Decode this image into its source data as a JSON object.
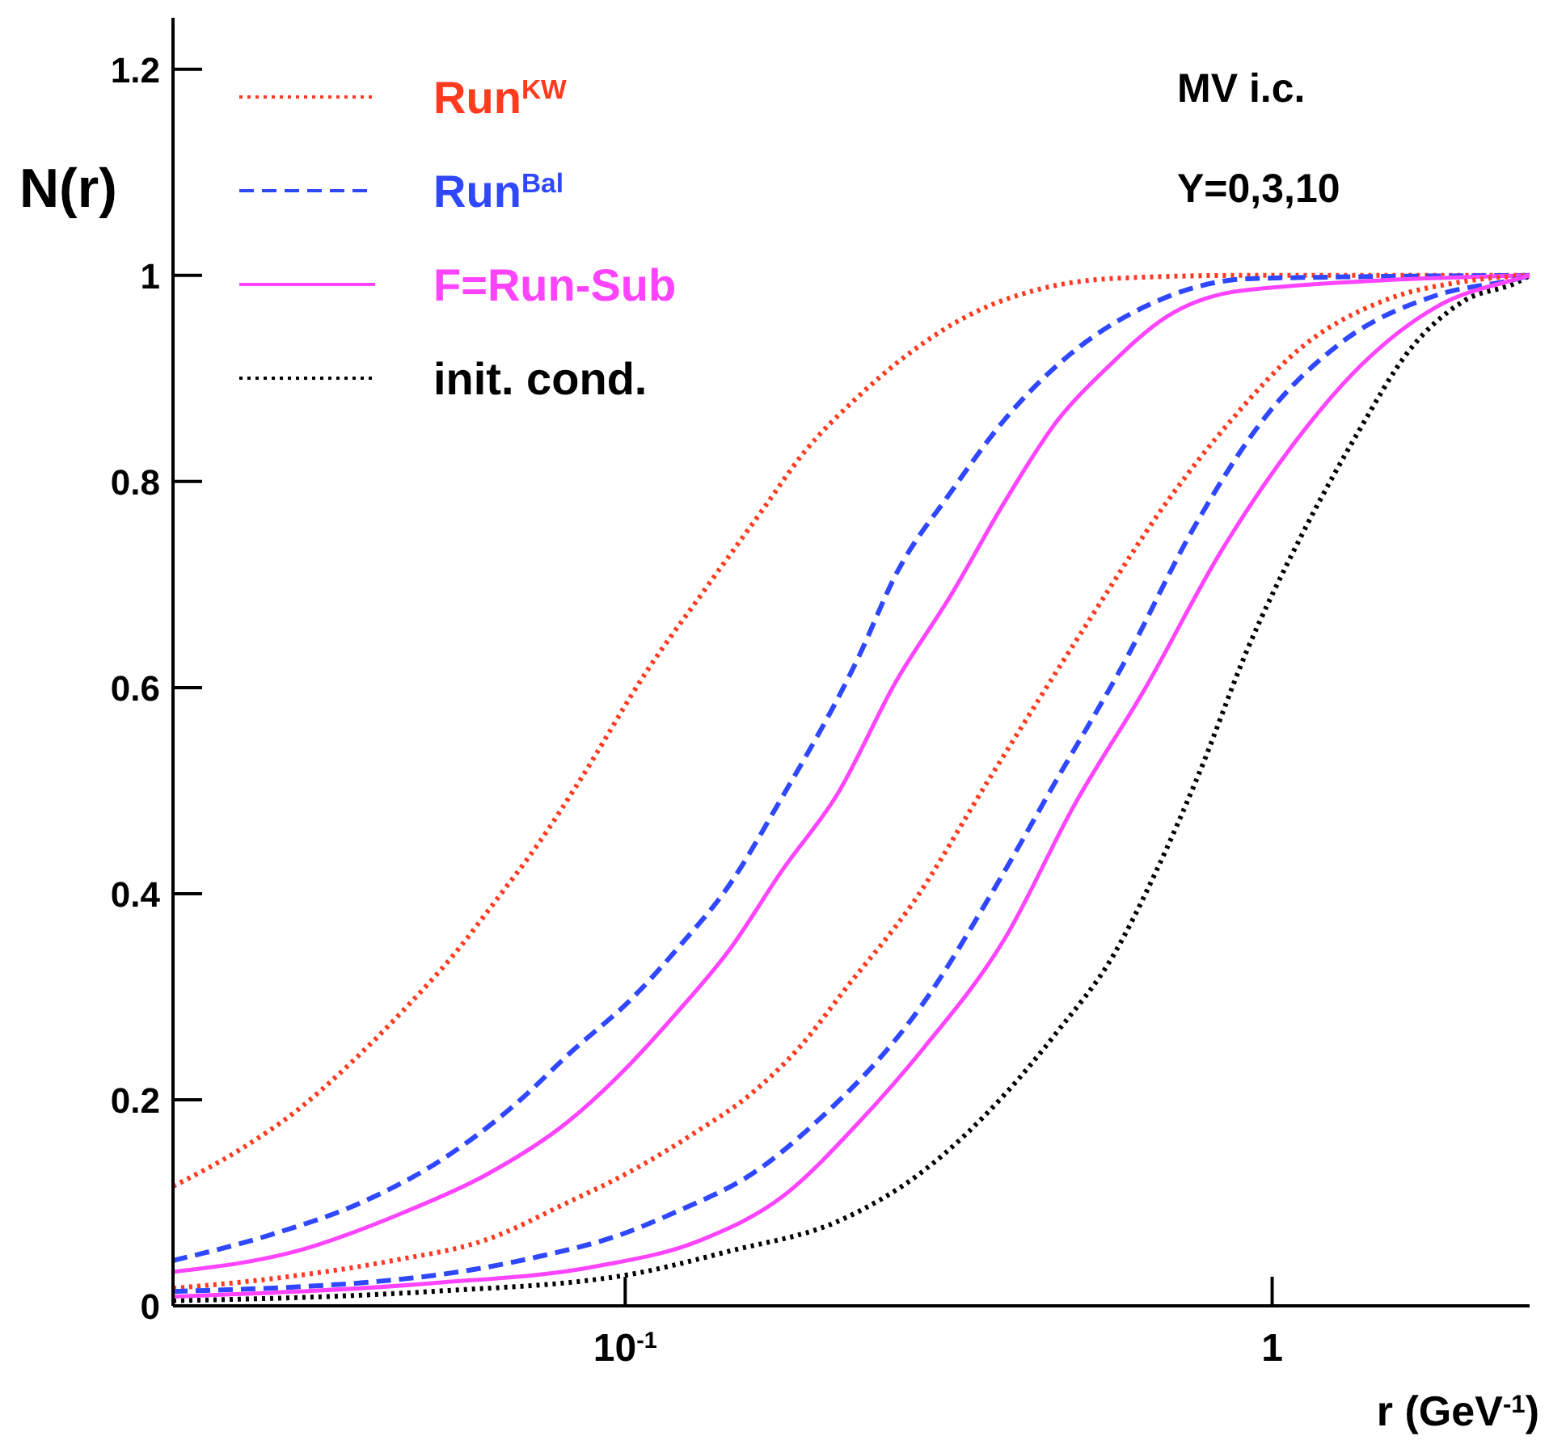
{
  "chart_data": {
    "type": "line",
    "xlabel": "r (GeV$^{-1}$)",
    "ylabel": "N(r)",
    "log": "x",
    "legend": "top left",
    "annotations": [
      "MV i.c.",
      "Y=0,3,10"
    ],
    "xlim": [
      0.02,
      2.5
    ],
    "ylim": [
      0,
      1.25
    ],
    "xticks": [
      {
        "value": 0.1,
        "label": "10$^{-1}$"
      },
      1
    ],
    "yticks": [
      0,
      0.2,
      0.4,
      0.6,
      0.8,
      1,
      1.2
    ],
    "series": [
      {
        "name": "Run$^{KW}$",
        "color": "#ff3b1f",
        "line_style": "dotted",
        "x": [
          0.02,
          0.0256,
          0.031,
          0.0377,
          0.0456,
          0.0542,
          0.0634,
          0.0737,
          0.0851,
          0.108,
          0.131,
          0.162,
          0.19,
          0.227,
          0.273,
          0.344,
          0.433,
          0.568,
          0.9,
          2.5
        ],
        "values": [
          0.116,
          0.153,
          0.189,
          0.236,
          0.288,
          0.34,
          0.395,
          0.45,
          0.51,
          0.616,
          0.69,
          0.77,
          0.83,
          0.88,
          0.923,
          0.963,
          0.986,
          0.997,
          1.0,
          1.0
        ]
      },
      {
        "name": "Run$^{Bal}$",
        "color": "#2f48ff",
        "line_style": "dashed",
        "x": [
          0.02,
          0.0283,
          0.039,
          0.0521,
          0.0672,
          0.0827,
          0.1023,
          0.1217,
          0.1447,
          0.172,
          0.2296,
          0.2622,
          0.319,
          0.3858,
          0.4862,
          0.6374,
          0.933,
          2.5
        ],
        "values": [
          0.044,
          0.069,
          0.1,
          0.142,
          0.194,
          0.247,
          0.298,
          0.35,
          0.408,
          0.486,
          0.63,
          0.71,
          0.79,
          0.86,
          0.923,
          0.97,
          0.997,
          1.0
        ]
      },
      {
        "name": "F=Run-Sub",
        "color": "#ff44ff",
        "line_style": "solid",
        "x": [
          0.02,
          0.031,
          0.0456,
          0.0609,
          0.0813,
          0.0983,
          0.1196,
          0.1447,
          0.175,
          0.213,
          0.2622,
          0.319,
          0.3858,
          0.4668,
          0.555,
          0.6872,
          0.917,
          2.5
        ],
        "values": [
          0.033,
          0.053,
          0.091,
          0.127,
          0.178,
          0.225,
          0.283,
          0.345,
          0.423,
          0.497,
          0.606,
          0.69,
          0.78,
          0.86,
          0.91,
          0.96,
          0.986,
          1.0
        ]
      },
      {
        "name": "init. cond.",
        "color": "#000000",
        "line_style": "dotted",
        "x": [
          0.02,
          0.0503,
          0.1006,
          0.1447,
          0.2167,
          0.2891,
          0.3858,
          0.4668,
          0.568,
          0.6598,
          0.7713,
          0.917,
          1.109,
          1.35,
          1.633,
          1.976,
          2.404,
          2.5
        ],
        "values": [
          0.005,
          0.014,
          0.03,
          0.053,
          0.084,
          0.131,
          0.205,
          0.267,
          0.34,
          0.42,
          0.517,
          0.638,
          0.747,
          0.845,
          0.928,
          0.975,
          0.994,
          1.0
        ]
      },
      {
        "color": "#ff3b1f",
        "line_style": "dotted",
        "x": [
          0.02,
          0.0299,
          0.0438,
          0.0609,
          0.0813,
          0.1023,
          0.1289,
          0.156,
          0.1854,
          0.2205,
          0.2777,
          0.3642,
          0.515,
          0.6872,
          0.8658,
          1.109,
          1.481,
          1.976,
          2.5
        ],
        "values": [
          0.017,
          0.028,
          0.044,
          0.064,
          0.1,
          0.131,
          0.169,
          0.205,
          0.25,
          0.31,
          0.39,
          0.51,
          0.66,
          0.78,
          0.86,
          0.93,
          0.975,
          0.994,
          1.0
        ]
      },
      {
        "color": "#2f48ff",
        "line_style": "dashed",
        "x": [
          0.02,
          0.0483,
          0.0737,
          0.0983,
          0.1196,
          0.1596,
          0.1931,
          0.2891,
          0.3706,
          0.4668,
          0.588,
          0.758,
          0.9716,
          1.274,
          1.801,
          2.404,
          2.5
        ],
        "values": [
          0.014,
          0.028,
          0.048,
          0.069,
          0.091,
          0.131,
          0.173,
          0.294,
          0.403,
          0.513,
          0.622,
          0.756,
          0.861,
          0.934,
          0.981,
          0.997,
          1.0
        ]
      },
      {
        "color": "#ff44ff",
        "line_style": "solid",
        "x": [
          0.02,
          0.0503,
          0.0896,
          0.1312,
          0.175,
          0.2296,
          0.2891,
          0.3858,
          0.4946,
          0.6374,
          0.8315,
          1.072,
          1.373,
          1.801,
          2.404,
          2.5
        ],
        "values": [
          0.009,
          0.022,
          0.038,
          0.064,
          0.106,
          0.178,
          0.25,
          0.356,
          0.486,
          0.6,
          0.731,
          0.834,
          0.913,
          0.97,
          0.997,
          1.0
        ]
      }
    ]
  }
}
